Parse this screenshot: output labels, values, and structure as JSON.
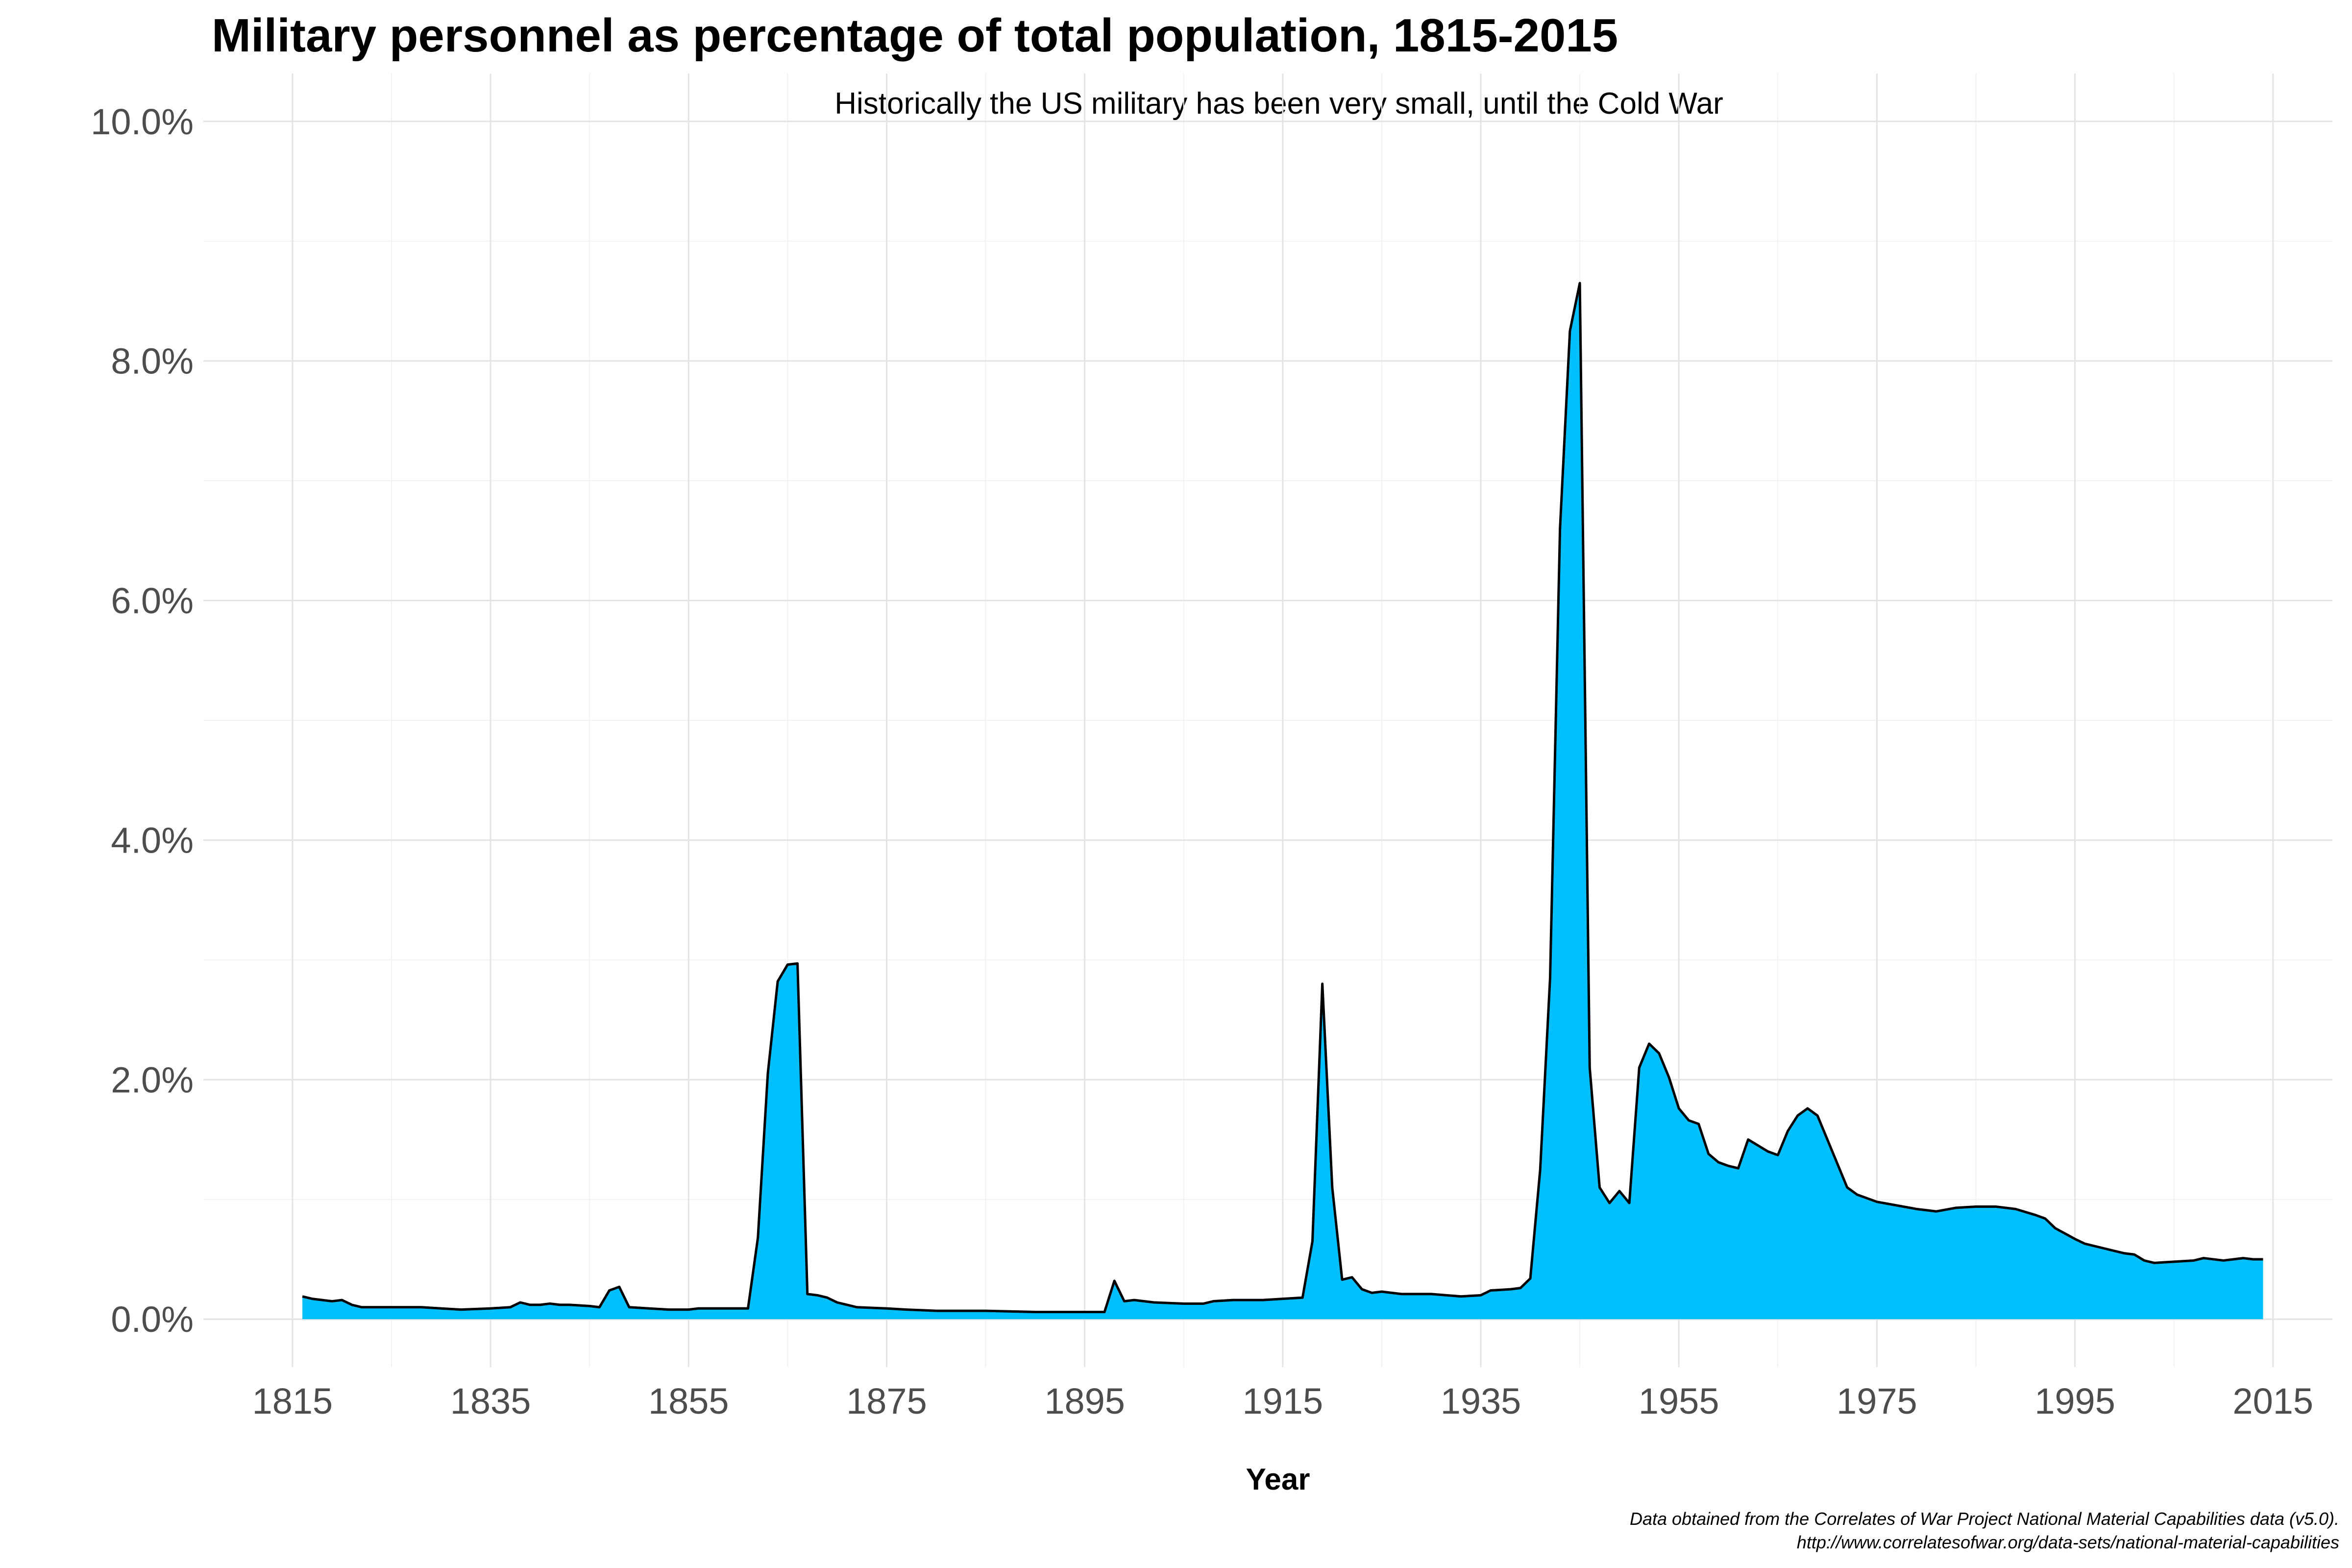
{
  "chart_data": {
    "type": "area",
    "title": "Military personnel as percentage of total population, 1815-2015",
    "subtitle": "Historically the US military has been very small, until the Cold War",
    "xlabel": "Year",
    "ylabel": "",
    "caption_line1": "Data obtained from the Correlates of War Project National Material Capabilities data (v5.0).",
    "caption_line2": "http://www.correlatesofwar.org/data-sets/national-material-capabilities",
    "xlim": [
      1806,
      2021
    ],
    "ylim": [
      -0.4,
      10.4
    ],
    "x_ticks": [
      1815,
      1835,
      1855,
      1875,
      1895,
      1915,
      1935,
      1955,
      1975,
      1995,
      2015
    ],
    "x_tick_labels": [
      "1815",
      "1835",
      "1855",
      "1875",
      "1895",
      "1915",
      "1935",
      "1955",
      "1975",
      "1995",
      "2015"
    ],
    "y_ticks": [
      0,
      2,
      4,
      6,
      8,
      10
    ],
    "y_tick_labels": [
      "0.0%",
      "2.0%",
      "4.0%",
      "6.0%",
      "8.0%",
      "10.0%"
    ],
    "grid": true,
    "fill_color": "#00BFFF",
    "line_color": "#000000",
    "points": [
      [
        1816,
        0.19
      ],
      [
        1817,
        0.17
      ],
      [
        1818,
        0.16
      ],
      [
        1819,
        0.15
      ],
      [
        1820,
        0.16
      ],
      [
        1821,
        0.12
      ],
      [
        1822,
        0.1
      ],
      [
        1825,
        0.1
      ],
      [
        1828,
        0.1
      ],
      [
        1830,
        0.09
      ],
      [
        1832,
        0.08
      ],
      [
        1835,
        0.09
      ],
      [
        1837,
        0.1
      ],
      [
        1838,
        0.14
      ],
      [
        1839,
        0.12
      ],
      [
        1840,
        0.12
      ],
      [
        1841,
        0.13
      ],
      [
        1842,
        0.12
      ],
      [
        1843,
        0.12
      ],
      [
        1845,
        0.11
      ],
      [
        1846,
        0.1
      ],
      [
        1847,
        0.24
      ],
      [
        1848,
        0.27
      ],
      [
        1849,
        0.1
      ],
      [
        1851,
        0.09
      ],
      [
        1853,
        0.08
      ],
      [
        1855,
        0.08
      ],
      [
        1856,
        0.09
      ],
      [
        1858,
        0.09
      ],
      [
        1860,
        0.09
      ],
      [
        1861,
        0.09
      ],
      [
        1862,
        0.68
      ],
      [
        1863,
        2.05
      ],
      [
        1864,
        2.82
      ],
      [
        1865,
        2.96
      ],
      [
        1866,
        2.97
      ],
      [
        1867,
        0.21
      ],
      [
        1868,
        0.2
      ],
      [
        1869,
        0.18
      ],
      [
        1870,
        0.14
      ],
      [
        1871,
        0.12
      ],
      [
        1872,
        0.1
      ],
      [
        1875,
        0.09
      ],
      [
        1877,
        0.08
      ],
      [
        1880,
        0.07
      ],
      [
        1885,
        0.07
      ],
      [
        1890,
        0.06
      ],
      [
        1895,
        0.06
      ],
      [
        1897,
        0.06
      ],
      [
        1898,
        0.32
      ],
      [
        1899,
        0.15
      ],
      [
        1900,
        0.16
      ],
      [
        1902,
        0.14
      ],
      [
        1905,
        0.13
      ],
      [
        1907,
        0.13
      ],
      [
        1908,
        0.15
      ],
      [
        1910,
        0.16
      ],
      [
        1913,
        0.16
      ],
      [
        1915,
        0.17
      ],
      [
        1917,
        0.18
      ],
      [
        1918,
        0.65
      ],
      [
        1919,
        2.8
      ],
      [
        1920,
        1.1
      ],
      [
        1921,
        0.33
      ],
      [
        1922,
        0.35
      ],
      [
        1923,
        0.25
      ],
      [
        1924,
        0.22
      ],
      [
        1925,
        0.23
      ],
      [
        1927,
        0.21
      ],
      [
        1930,
        0.21
      ],
      [
        1933,
        0.19
      ],
      [
        1935,
        0.2
      ],
      [
        1936,
        0.24
      ],
      [
        1938,
        0.25
      ],
      [
        1939,
        0.26
      ],
      [
        1940,
        0.34
      ],
      [
        1941,
        1.25
      ],
      [
        1942,
        2.85
      ],
      [
        1943,
        6.6
      ],
      [
        1944,
        8.25
      ],
      [
        1945,
        8.65
      ],
      [
        1946,
        2.1
      ],
      [
        1947,
        1.1
      ],
      [
        1948,
        0.97
      ],
      [
        1949,
        1.07
      ],
      [
        1950,
        0.97
      ],
      [
        1951,
        2.1
      ],
      [
        1952,
        2.3
      ],
      [
        1953,
        2.22
      ],
      [
        1954,
        2.02
      ],
      [
        1955,
        1.76
      ],
      [
        1956,
        1.66
      ],
      [
        1957,
        1.63
      ],
      [
        1958,
        1.38
      ],
      [
        1959,
        1.31
      ],
      [
        1960,
        1.28
      ],
      [
        1961,
        1.26
      ],
      [
        1962,
        1.5
      ],
      [
        1963,
        1.45
      ],
      [
        1964,
        1.4
      ],
      [
        1965,
        1.37
      ],
      [
        1966,
        1.57
      ],
      [
        1967,
        1.7
      ],
      [
        1968,
        1.76
      ],
      [
        1969,
        1.7
      ],
      [
        1970,
        1.5
      ],
      [
        1971,
        1.3
      ],
      [
        1972,
        1.1
      ],
      [
        1973,
        1.04
      ],
      [
        1975,
        0.98
      ],
      [
        1977,
        0.95
      ],
      [
        1979,
        0.92
      ],
      [
        1981,
        0.9
      ],
      [
        1983,
        0.93
      ],
      [
        1985,
        0.94
      ],
      [
        1987,
        0.94
      ],
      [
        1989,
        0.92
      ],
      [
        1991,
        0.87
      ],
      [
        1992,
        0.84
      ],
      [
        1993,
        0.76
      ],
      [
        1995,
        0.67
      ],
      [
        1996,
        0.63
      ],
      [
        1998,
        0.59
      ],
      [
        2000,
        0.55
      ],
      [
        2001,
        0.54
      ],
      [
        2002,
        0.49
      ],
      [
        2003,
        0.47
      ],
      [
        2005,
        0.48
      ],
      [
        2007,
        0.49
      ],
      [
        2008,
        0.51
      ],
      [
        2010,
        0.49
      ],
      [
        2012,
        0.51
      ],
      [
        2013,
        0.5
      ],
      [
        2014,
        0.5
      ]
    ]
  }
}
